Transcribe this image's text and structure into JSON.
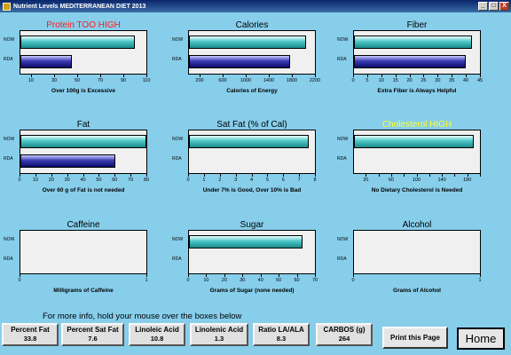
{
  "window": {
    "title": "Nutrient Levels MEDITERRANEAN DIET 2013",
    "buttons": [
      "_",
      "□",
      "X"
    ]
  },
  "row_labels": {
    "now": "NOW",
    "rda": "RDA"
  },
  "panels": [
    {
      "id": "protein",
      "title": "Protein TOO HIGH",
      "title_color": "#ff1a1a",
      "now": 100,
      "rda": 45,
      "axis_min": 0,
      "axis_max": 110,
      "ticks": [
        10,
        30,
        50,
        70,
        90,
        110
      ],
      "caption": "Over 100g is Excessive"
    },
    {
      "id": "calories",
      "title": "Calories",
      "title_color": "#000000",
      "now": 2050,
      "rda": 1770,
      "axis_min": 0,
      "axis_max": 2200,
      "ticks": [
        200,
        600,
        1000,
        1400,
        1800,
        2200
      ],
      "caption": "Calories of Energy"
    },
    {
      "id": "fiber",
      "title": "Fiber",
      "title_color": "#000000",
      "now": 42,
      "rda": 40,
      "axis_min": 0,
      "axis_max": 45,
      "ticks": [
        0,
        5,
        10,
        15,
        20,
        25,
        30,
        35,
        40,
        45
      ],
      "caption": "Extra Fiber is Always Helpful"
    },
    {
      "id": "fat",
      "title": "Fat",
      "title_color": "#000000",
      "now": 80,
      "rda": 60,
      "axis_min": 0,
      "axis_max": 80,
      "ticks": [
        0,
        10,
        20,
        30,
        40,
        50,
        60,
        70,
        80
      ],
      "caption": "Over 60 g of Fat is not needed"
    },
    {
      "id": "satfat",
      "title": "Sat Fat (% of Cal)",
      "title_color": "#000000",
      "now": 7.6,
      "rda": 0,
      "axis_min": 0,
      "axis_max": 8,
      "ticks": [
        0,
        1,
        2,
        3,
        4,
        5,
        6,
        7,
        8
      ],
      "caption": "Under 7% is Good, Over 10% is Bad"
    },
    {
      "id": "cholesterol",
      "title": "Cholesterol HIGH",
      "title_color": "#ffff33",
      "now": 190,
      "rda": 0,
      "axis_min": 0,
      "axis_max": 200,
      "ticks": [
        20,
        40,
        60,
        80,
        100,
        120,
        140,
        160,
        180,
        200
      ],
      "tick_labels": [
        20,
        60,
        100,
        140,
        180
      ],
      "caption": "No Dietary Cholesterol is Needed"
    },
    {
      "id": "caffeine",
      "title": "Caffeine",
      "title_color": "#000000",
      "now": 0,
      "rda": 0,
      "axis_min": 0,
      "axis_max": 1,
      "ticks": [
        0,
        1
      ],
      "caption": "Milligrams of Caffeine"
    },
    {
      "id": "sugar",
      "title": "Sugar",
      "title_color": "#000000",
      "now": 63,
      "rda": 0,
      "axis_min": 0,
      "axis_max": 70,
      "ticks": [
        0,
        10,
        20,
        30,
        40,
        50,
        60,
        70
      ],
      "caption": "Grams of Sugar (none needed)"
    },
    {
      "id": "alcohol",
      "title": "Alcohol",
      "title_color": "#000000",
      "now": 0,
      "rda": 0,
      "axis_min": 0,
      "axis_max": 1,
      "ticks": [
        0,
        1
      ],
      "caption": "Grams of Alcohol"
    }
  ],
  "more_info": "For more info, hold your mouse over the boxes below",
  "stats": [
    {
      "label": "Percent Fat",
      "value": "33.8"
    },
    {
      "label": "Percent Sat Fat",
      "value": "7.6"
    },
    {
      "label": "Linoleic Acid",
      "value": "10.8"
    },
    {
      "label": "Linolenic Acid",
      "value": "1.3"
    },
    {
      "label": "Ratio LA/ALA",
      "value": "8.3"
    },
    {
      "label": "CARBOS (g)",
      "value": "264"
    }
  ],
  "buttons": {
    "print": "Print this Page",
    "home": "Home"
  }
}
